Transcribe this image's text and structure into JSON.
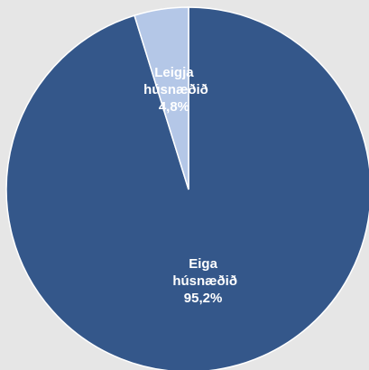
{
  "chart_data": {
    "type": "pie",
    "categories": [
      "Eiga húsnæðið",
      "Leigja húsnæðið"
    ],
    "values": [
      95.2,
      4.8
    ],
    "value_labels": [
      "95,2%",
      "4,8%"
    ],
    "colors": [
      "#34578a",
      "#b4c7e7"
    ]
  }
}
